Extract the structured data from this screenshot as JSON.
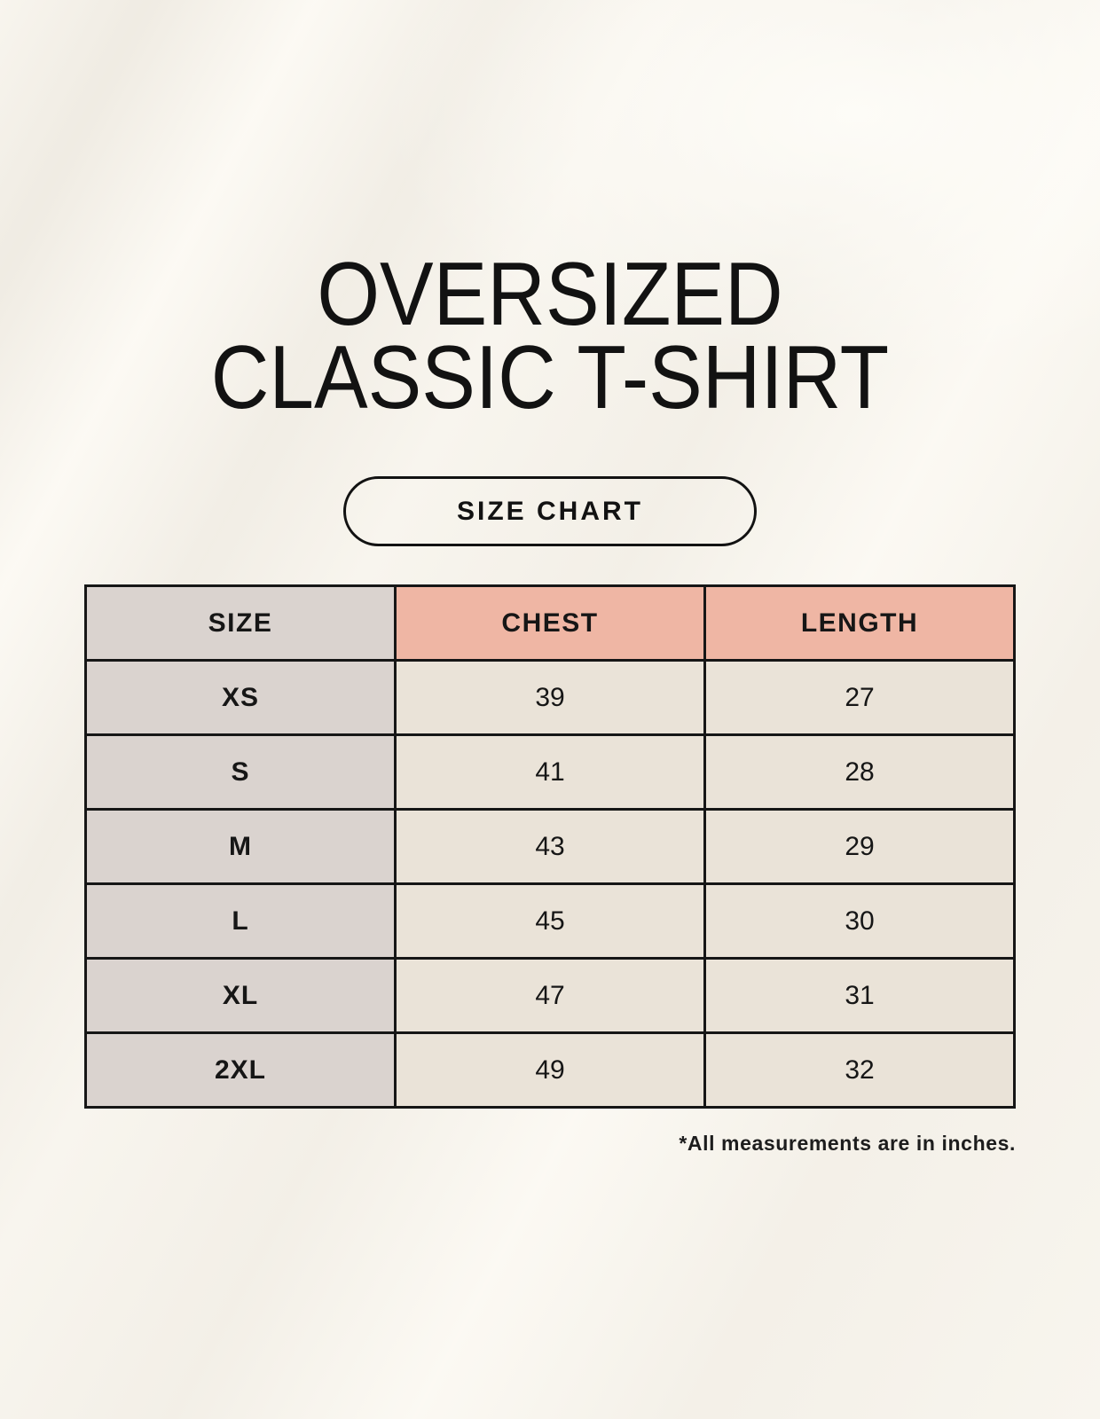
{
  "page": {
    "title_line1": "OVERSIZED",
    "title_line2": "CLASSIC T-SHIRT",
    "size_chart_button": "SIZE CHART",
    "footnote": "*All measurements are in inches."
  },
  "colors": {
    "page_background": "#f8f5ee",
    "text": "#161616",
    "table_border": "#161616",
    "size_column_bg": "#dad3cf",
    "measure_header_bg": "#efb6a4",
    "value_cell_bg": "#eae3d8"
  },
  "chart_data": {
    "type": "table",
    "title": "SIZE CHART",
    "columns": [
      "SIZE",
      "CHEST",
      "LENGTH"
    ],
    "rows": [
      {
        "size": "XS",
        "chest": "39",
        "length": "27"
      },
      {
        "size": "S",
        "chest": "41",
        "length": "28"
      },
      {
        "size": "M",
        "chest": "43",
        "length": "29"
      },
      {
        "size": "L",
        "chest": "45",
        "length": "30"
      },
      {
        "size": "XL",
        "chest": "47",
        "length": "31"
      },
      {
        "size": "2XL",
        "chest": "49",
        "length": "32"
      }
    ],
    "units": "inches",
    "footnote": "*All measurements are in inches."
  }
}
